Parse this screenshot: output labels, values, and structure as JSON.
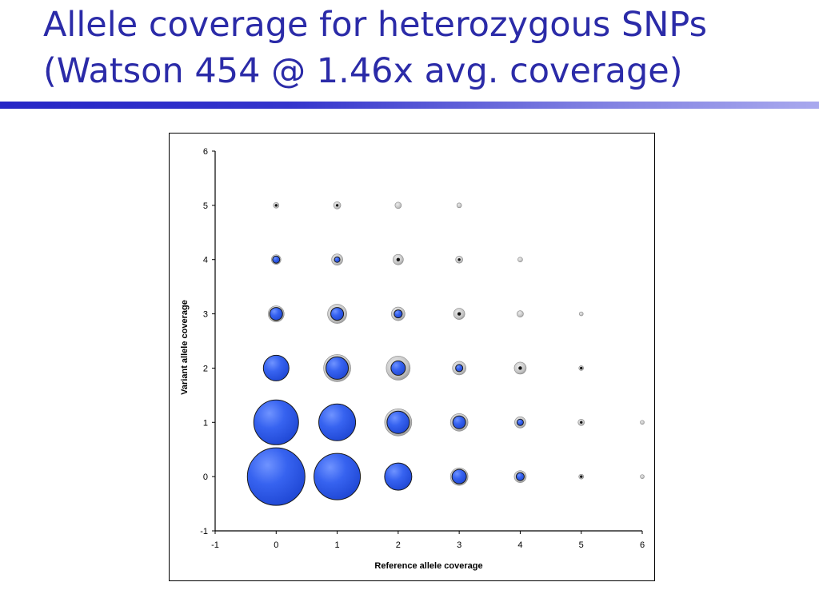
{
  "slide": {
    "title_line1": "Allele coverage for heterozygous SNPs",
    "title_line2": "(Watson 454 @ 1.46x avg. coverage)"
  },
  "colors": {
    "title": "#2b2ba8",
    "bubble_fill": "#2f5bea",
    "bubble_highlight": "#6f93ff",
    "bubble_outline": "#1a1a1a",
    "halo": "#c0c0c0"
  },
  "chart_data": {
    "type": "bubble",
    "title": "",
    "xlabel": "Reference allele coverage",
    "ylabel": "Variant allele coverage",
    "xlim": [
      -1,
      6
    ],
    "ylim": [
      -1,
      6
    ],
    "xticks": [
      "-1",
      "0",
      "1",
      "2",
      "3",
      "4",
      "5",
      "6"
    ],
    "yticks": [
      "-1",
      "0",
      "1",
      "2",
      "3",
      "4",
      "5",
      "6"
    ],
    "grid": false,
    "legend": "none",
    "series": [
      {
        "points": [
          {
            "x": 0,
            "y": 0,
            "size": 36
          },
          {
            "x": 1,
            "y": 0,
            "size": 29
          },
          {
            "x": 2,
            "y": 0,
            "size": 17
          },
          {
            "x": 3,
            "y": 0,
            "size": 9
          },
          {
            "x": 4,
            "y": 0,
            "size": 5
          },
          {
            "x": 5,
            "y": 0,
            "size": 1.5
          },
          {
            "x": 0,
            "y": 1,
            "size": 28
          },
          {
            "x": 1,
            "y": 1,
            "size": 23
          },
          {
            "x": 2,
            "y": 1,
            "size": 14
          },
          {
            "x": 3,
            "y": 1,
            "size": 8
          },
          {
            "x": 4,
            "y": 1,
            "size": 4
          },
          {
            "x": 5,
            "y": 1,
            "size": 1.5
          },
          {
            "x": 0,
            "y": 2,
            "size": 16
          },
          {
            "x": 1,
            "y": 2,
            "size": 14
          },
          {
            "x": 2,
            "y": 2,
            "size": 9
          },
          {
            "x": 3,
            "y": 2,
            "size": 4.5
          },
          {
            "x": 4,
            "y": 2,
            "size": 2
          },
          {
            "x": 5,
            "y": 2,
            "size": 1.5
          },
          {
            "x": 0,
            "y": 3,
            "size": 8
          },
          {
            "x": 1,
            "y": 3,
            "size": 8
          },
          {
            "x": 2,
            "y": 3,
            "size": 5
          },
          {
            "x": 3,
            "y": 3,
            "size": 2
          },
          {
            "x": 0,
            "y": 4,
            "size": 4.5
          },
          {
            "x": 1,
            "y": 4,
            "size": 3.5
          },
          {
            "x": 2,
            "y": 4,
            "size": 2
          },
          {
            "x": 3,
            "y": 4,
            "size": 1.5
          },
          {
            "x": 0,
            "y": 5,
            "size": 1.5
          },
          {
            "x": 1,
            "y": 5,
            "size": 1.5
          }
        ]
      },
      {
        "style": "halo",
        "points": [
          {
            "x": 0,
            "y": 3,
            "size": 10
          },
          {
            "x": 1,
            "y": 3,
            "size": 12
          },
          {
            "x": 2,
            "y": 3,
            "size": 8.5
          },
          {
            "x": 3,
            "y": 3,
            "size": 7
          },
          {
            "x": 4,
            "y": 3,
            "size": 4
          },
          {
            "x": 5,
            "y": 3,
            "size": 2.5
          },
          {
            "x": 1,
            "y": 2,
            "size": 17
          },
          {
            "x": 2,
            "y": 2,
            "size": 15
          },
          {
            "x": 3,
            "y": 2,
            "size": 8.5
          },
          {
            "x": 4,
            "y": 2,
            "size": 7.5
          },
          {
            "x": 5,
            "y": 2,
            "size": 3
          },
          {
            "x": 2,
            "y": 1,
            "size": 17
          },
          {
            "x": 3,
            "y": 1,
            "size": 11
          },
          {
            "x": 4,
            "y": 1,
            "size": 7
          },
          {
            "x": 5,
            "y": 1,
            "size": 4
          },
          {
            "x": 6,
            "y": 1,
            "size": 2.5
          },
          {
            "x": 3,
            "y": 0,
            "size": 11
          },
          {
            "x": 4,
            "y": 0,
            "size": 7.5
          },
          {
            "x": 5,
            "y": 0,
            "size": 3
          },
          {
            "x": 6,
            "y": 0,
            "size": 2.5
          },
          {
            "x": 0,
            "y": 4,
            "size": 6
          },
          {
            "x": 1,
            "y": 4,
            "size": 7
          },
          {
            "x": 2,
            "y": 4,
            "size": 6.5
          },
          {
            "x": 3,
            "y": 4,
            "size": 4.5
          },
          {
            "x": 4,
            "y": 4,
            "size": 3
          },
          {
            "x": 0,
            "y": 5,
            "size": 3.5
          },
          {
            "x": 1,
            "y": 5,
            "size": 4.5
          },
          {
            "x": 2,
            "y": 5,
            "size": 4
          },
          {
            "x": 3,
            "y": 5,
            "size": 3
          }
        ]
      }
    ]
  }
}
